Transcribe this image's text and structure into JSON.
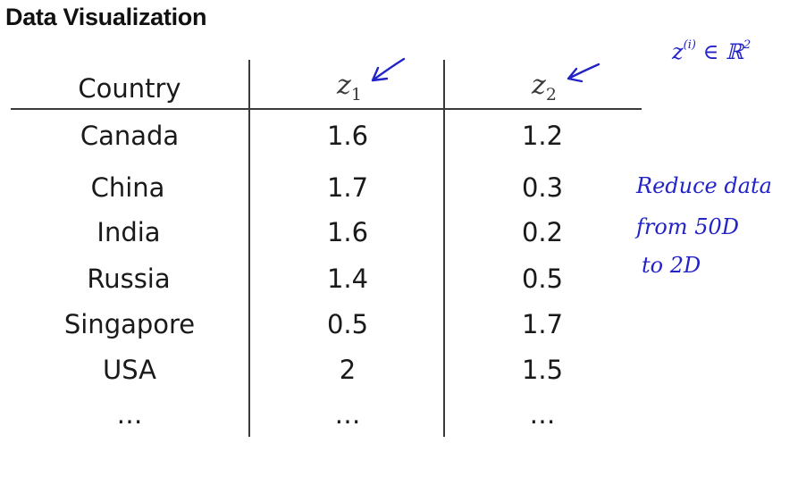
{
  "title": "Data Visualization",
  "table": {
    "columns": [
      {
        "label": "Country"
      },
      {
        "var": "z",
        "sub": "1"
      },
      {
        "var": "z",
        "sub": "2"
      }
    ],
    "rows": [
      [
        "Canada",
        "1.6",
        "1.2"
      ],
      [
        "China",
        "1.7",
        "0.3"
      ],
      [
        "India",
        "1.6",
        "0.2"
      ],
      [
        "Russia",
        "1.4",
        "0.5"
      ],
      [
        "Singapore",
        "0.5",
        "1.7"
      ],
      [
        "USA",
        "2",
        "1.5"
      ],
      [
        "…",
        "…",
        "…"
      ]
    ]
  },
  "annotations": {
    "math": {
      "base": "z",
      "sup": "(i)",
      "rest": " ∈ ℝ",
      "rest_sup": "2"
    },
    "notes": [
      "Reduce data",
      "from 50D",
      "to 2D"
    ],
    "ink_color": "#2323c8"
  }
}
